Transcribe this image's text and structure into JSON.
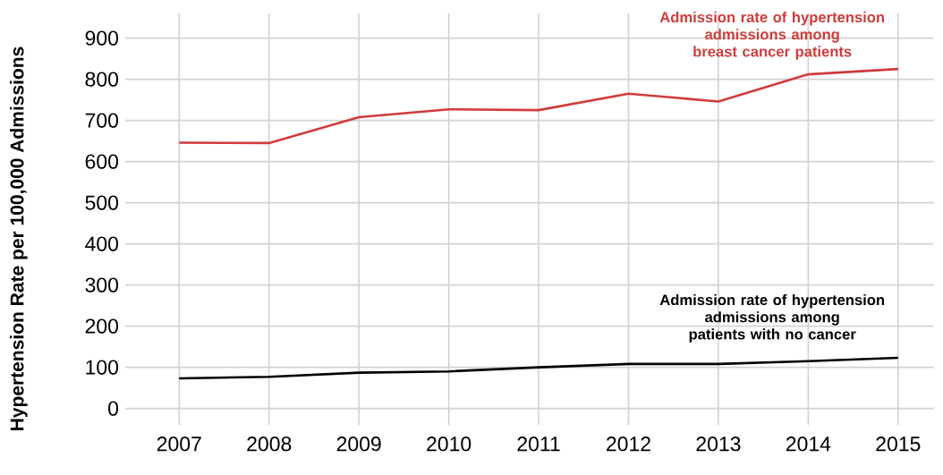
{
  "chart_data": {
    "type": "line",
    "ylabel": "Hypertension Rate per 100,000 Admissions",
    "x": [
      2007,
      2008,
      2009,
      2010,
      2011,
      2012,
      2013,
      2014,
      2015
    ],
    "series": [
      {
        "name": "Admission rate of hypertension admissions among breast cancer patients",
        "color": "#d13b3b",
        "values": [
          646,
          645,
          708,
          727,
          725,
          765,
          746,
          812,
          825
        ]
      },
      {
        "name": "Admission rate of hypertension admissions among patients with no cancer",
        "color": "#000000",
        "values": [
          73,
          77,
          87,
          90,
          100,
          108,
          108,
          115,
          123
        ]
      }
    ],
    "xlim": [
      2006.4,
      2015.4
    ],
    "ylim": [
      -40,
      960
    ],
    "xticks": [
      2007,
      2008,
      2009,
      2010,
      2011,
      2012,
      2013,
      2014,
      2015
    ],
    "yticks": [
      0,
      100,
      200,
      300,
      400,
      500,
      600,
      700,
      800,
      900
    ],
    "grid": true,
    "legend": false,
    "marker": "none",
    "line_style": "solid"
  }
}
